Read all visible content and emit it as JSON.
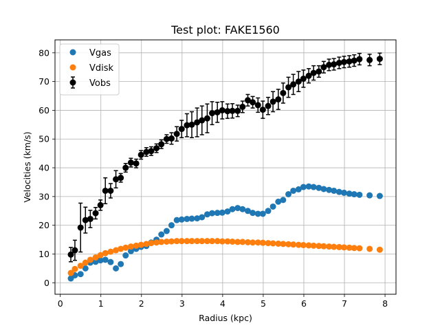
{
  "chart_data": {
    "type": "scatter",
    "title": "Test plot: FAKE1560",
    "xlabel": "Radius (kpc)",
    "ylabel": "Velocities (km/s)",
    "xlim": [
      -0.13,
      8.27
    ],
    "ylim": [
      -4.0,
      84.5
    ],
    "xticks": [
      0,
      1,
      2,
      3,
      4,
      5,
      6,
      7,
      8
    ],
    "yticks": [
      0,
      10,
      20,
      30,
      40,
      50,
      60,
      70,
      80
    ],
    "grid": true,
    "legend_position": "upper left",
    "series": [
      {
        "name": "Vgas",
        "color": "#1f77b4",
        "marker": "circle",
        "x": [
          0.26,
          0.36,
          0.5,
          0.62,
          0.74,
          0.87,
          0.99,
          1.11,
          1.24,
          1.37,
          1.49,
          1.61,
          1.74,
          1.87,
          1.99,
          2.12,
          2.24,
          2.37,
          2.49,
          2.62,
          2.74,
          2.87,
          2.99,
          3.12,
          3.24,
          3.37,
          3.49,
          3.62,
          3.74,
          3.87,
          3.99,
          4.12,
          4.24,
          4.37,
          4.49,
          4.62,
          4.74,
          4.87,
          4.99,
          5.12,
          5.24,
          5.37,
          5.49,
          5.62,
          5.74,
          5.87,
          5.99,
          6.12,
          6.24,
          6.37,
          6.49,
          6.62,
          6.74,
          6.87,
          6.99,
          7.12,
          7.24,
          7.37,
          7.62,
          7.87
        ],
        "y": [
          1.5,
          2.6,
          3.0,
          5.0,
          7.0,
          7.3,
          7.8,
          8.0,
          7.2,
          5.0,
          6.5,
          9.5,
          11.0,
          11.8,
          12.5,
          12.8,
          14.0,
          15.0,
          16.8,
          18.0,
          20.0,
          21.8,
          22.0,
          22.2,
          22.3,
          22.4,
          22.8,
          23.8,
          24.2,
          24.3,
          24.4,
          24.8,
          25.6,
          26.0,
          25.6,
          25.0,
          24.3,
          24.0,
          24.0,
          25.0,
          26.5,
          28.2,
          28.8,
          30.8,
          32.0,
          32.5,
          33.3,
          33.5,
          33.3,
          33.0,
          32.6,
          32.3,
          32.0,
          31.6,
          31.3,
          31.0,
          30.8,
          30.6,
          30.4,
          30.2
        ]
      },
      {
        "name": "Vdisk",
        "color": "#ff7f0e",
        "marker": "circle",
        "x": [
          0.26,
          0.36,
          0.5,
          0.62,
          0.74,
          0.87,
          0.99,
          1.11,
          1.24,
          1.37,
          1.49,
          1.61,
          1.74,
          1.87,
          1.99,
          2.12,
          2.24,
          2.37,
          2.49,
          2.62,
          2.74,
          2.87,
          2.99,
          3.12,
          3.24,
          3.37,
          3.49,
          3.62,
          3.74,
          3.87,
          3.99,
          4.12,
          4.24,
          4.37,
          4.49,
          4.62,
          4.74,
          4.87,
          4.99,
          5.12,
          5.24,
          5.37,
          5.49,
          5.62,
          5.74,
          5.87,
          5.99,
          6.12,
          6.24,
          6.37,
          6.49,
          6.62,
          6.74,
          6.87,
          6.99,
          7.12,
          7.24,
          7.37,
          7.62,
          7.87
        ],
        "y": [
          3.4,
          4.8,
          5.9,
          7.0,
          8.0,
          8.8,
          9.6,
          10.3,
          10.8,
          11.3,
          11.8,
          12.2,
          12.6,
          12.9,
          13.2,
          13.5,
          13.8,
          14.0,
          14.2,
          14.3,
          14.4,
          14.5,
          14.5,
          14.5,
          14.5,
          14.5,
          14.5,
          14.5,
          14.5,
          14.5,
          14.4,
          14.4,
          14.3,
          14.2,
          14.2,
          14.1,
          14.0,
          14.0,
          13.9,
          13.8,
          13.7,
          13.6,
          13.5,
          13.4,
          13.3,
          13.2,
          13.1,
          13.0,
          12.9,
          12.8,
          12.7,
          12.6,
          12.5,
          12.4,
          12.3,
          12.2,
          12.1,
          12.0,
          11.8,
          11.5
        ]
      },
      {
        "name": "Vobs",
        "color": "#000000",
        "marker": "circle",
        "errorbars": true,
        "x": [
          0.26,
          0.36,
          0.5,
          0.62,
          0.74,
          0.87,
          0.99,
          1.11,
          1.24,
          1.37,
          1.49,
          1.61,
          1.74,
          1.87,
          1.99,
          2.12,
          2.24,
          2.37,
          2.49,
          2.62,
          2.74,
          2.87,
          2.99,
          3.12,
          3.24,
          3.37,
          3.49,
          3.62,
          3.74,
          3.87,
          3.99,
          4.12,
          4.24,
          4.37,
          4.49,
          4.62,
          4.74,
          4.87,
          4.99,
          5.12,
          5.24,
          5.37,
          5.49,
          5.62,
          5.74,
          5.87,
          5.99,
          6.12,
          6.24,
          6.37,
          6.49,
          6.62,
          6.74,
          6.87,
          6.99,
          7.12,
          7.24,
          7.37,
          7.62,
          7.87
        ],
        "y": [
          9.8,
          11.3,
          19.2,
          21.8,
          22.2,
          24.2,
          27.0,
          32.0,
          32.0,
          36.0,
          36.5,
          40.0,
          41.8,
          41.5,
          44.5,
          45.5,
          45.8,
          46.8,
          48.2,
          50.0,
          50.2,
          51.8,
          53.5,
          54.8,
          55.0,
          55.8,
          56.5,
          57.2,
          59.0,
          59.3,
          60.0,
          59.7,
          59.8,
          59.8,
          61.2,
          63.5,
          62.8,
          61.8,
          60.2,
          61.5,
          63.0,
          63.8,
          66.0,
          68.0,
          69.0,
          70.0,
          71.0,
          72.0,
          73.0,
          73.5,
          75.0,
          75.8,
          76.0,
          76.5,
          76.8,
          77.0,
          77.3,
          77.8,
          77.5,
          77.9
        ],
        "yerr": [
          2.5,
          3.5,
          8.5,
          4.5,
          3.0,
          2.0,
          1.8,
          4.5,
          2.5,
          3.0,
          1.5,
          1.5,
          1.5,
          1.5,
          1.5,
          1.5,
          1.5,
          1.5,
          1.5,
          1.5,
          2.0,
          2.5,
          3.0,
          4.0,
          4.5,
          5.0,
          5.0,
          5.0,
          4.0,
          3.5,
          3.0,
          2.5,
          2.5,
          2.0,
          2.0,
          2.0,
          2.0,
          2.5,
          3.0,
          3.0,
          3.5,
          3.5,
          3.5,
          3.5,
          3.5,
          3.5,
          3.0,
          2.5,
          2.5,
          2.0,
          2.0,
          2.0,
          2.0,
          2.0,
          2.0,
          2.0,
          2.0,
          2.0,
          2.0,
          2.0
        ]
      }
    ]
  }
}
